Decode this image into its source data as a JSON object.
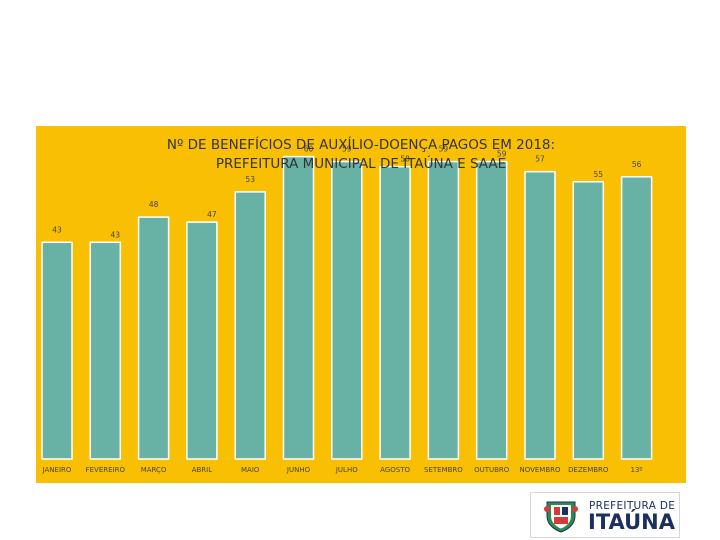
{
  "chart_data": {
    "type": "bar",
    "title_line1": "Nº DE BENEFÍCIOS DE AUXÍLIO-DOENÇA PAGOS EM 2018:",
    "title_line2": "PREFEITURA MUNICIPAL DE ITAÚNA E SAAE",
    "categories": [
      "JANEIRO",
      "FEVEREIRO",
      "MARÇO",
      "ABRIL",
      "MAIO",
      "JUNHO",
      "JULHO",
      "AGOSTO",
      "SETEMBRO",
      "OUTUBRO",
      "NOVEMBRO",
      "DEZEMBRO",
      "13º"
    ],
    "values": [
      43,
      43,
      48,
      47,
      53,
      60,
      59,
      58,
      59,
      59,
      57,
      55,
      56
    ],
    "ylim": [
      0,
      62
    ],
    "bar_color": "#68b1a5",
    "background_color": "#f9c003",
    "xlabel": "",
    "ylabel": "",
    "grid": false,
    "legend": "none"
  },
  "logo": {
    "line1": "PREFEITURA DE",
    "line2": "ITAÚNA",
    "text_color": "#1d2f61"
  }
}
